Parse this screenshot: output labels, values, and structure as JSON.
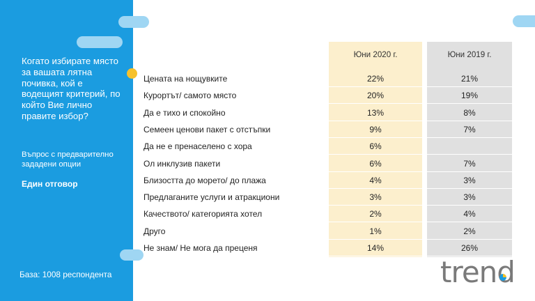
{
  "sidebar": {
    "question": "Когато избирате място за вашата лятна почивка, кой е водещият критерий, по който Вие лично правите избор?",
    "note": "Въпрос с предварително зададени опции",
    "answer_type": "Един отговор",
    "base": "База: 1008 респондента"
  },
  "table": {
    "columns": [
      "Юни 2020 г.",
      "Юни 2019 г."
    ],
    "rows": [
      {
        "label": "Цената на нощувките",
        "v2020": "22%",
        "v2019": "21%"
      },
      {
        "label": "Курортът/ самото място",
        "v2020": "20%",
        "v2019": "19%"
      },
      {
        "label": "Да е тихо и спокойно",
        "v2020": "13%",
        "v2019": "8%"
      },
      {
        "label": "Семеен ценови пакет с отстъпки",
        "v2020": "9%",
        "v2019": "7%"
      },
      {
        "label": "Да не е пренаселено с хора",
        "v2020": "6%",
        "v2019": ""
      },
      {
        "label": "Ол инклузив пакети",
        "v2020": "6%",
        "v2019": "7%"
      },
      {
        "label": "Близостта до морето/ до плажа",
        "v2020": "4%",
        "v2019": "3%"
      },
      {
        "label": "Предлаганите услуги и атракциони",
        "v2020": "3%",
        "v2019": "3%"
      },
      {
        "label": "Качеството/ категорията хотел",
        "v2020": "2%",
        "v2019": "4%"
      },
      {
        "label": "Друго",
        "v2020": "1%",
        "v2019": "2%"
      },
      {
        "label": "Не знам/ Не мога да преценя",
        "v2020": "14%",
        "v2019": "26%"
      }
    ]
  },
  "logo": {
    "text": "trend"
  },
  "colors": {
    "sidebar": "#1b9ce0",
    "col2020": "#fcefcd",
    "col2019": "#e0e0e0",
    "accent": "#f6c12c"
  }
}
